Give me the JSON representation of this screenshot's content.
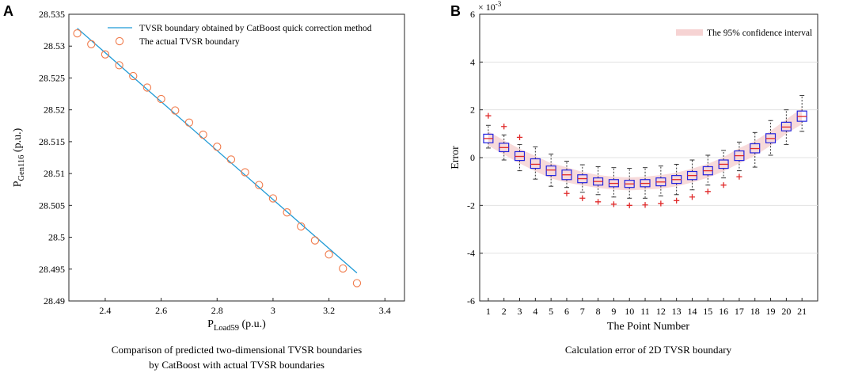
{
  "chart_data": [
    {
      "panel": "A",
      "type": "line+scatter",
      "title": "",
      "xlabel_main": "P",
      "xlabel_sub": "Load59",
      "xlabel_unit": " (p.u.)",
      "ylabel_main": "P",
      "ylabel_sub": "Gen116",
      "ylabel_unit": " (p.u.)",
      "xlim": [
        2.27,
        3.47
      ],
      "ylim": [
        28.49,
        28.535
      ],
      "xticks": [
        "2.4",
        "2.6",
        "2.8",
        "3",
        "3.2",
        "3.4"
      ],
      "xtick_values": [
        2.4,
        2.6,
        2.8,
        3.0,
        3.2,
        3.4
      ],
      "yticks": [
        "28.49",
        "28.495",
        "28.5",
        "28.505",
        "28.51",
        "28.515",
        "28.52",
        "28.525",
        "28.53",
        "28.535"
      ],
      "ytick_values": [
        28.49,
        28.495,
        28.5,
        28.505,
        28.51,
        28.515,
        28.52,
        28.525,
        28.53,
        28.535
      ],
      "legend": [
        "TVSR boundary obtained by CatBoost quick correction method",
        "The actual TVSR boundary"
      ],
      "legend_position": "top-right",
      "series": [
        {
          "name": "TVSR boundary obtained by CatBoost quick correction method",
          "kind": "line",
          "color": "#1f9ad6",
          "x": [
            2.3,
            3.3
          ],
          "y": [
            28.5328,
            28.4944
          ]
        },
        {
          "name": "The actual TVSR boundary",
          "kind": "scatter",
          "color": "#f07a4a",
          "x": [
            2.3,
            2.35,
            2.4,
            2.45,
            2.5,
            2.55,
            2.6,
            2.65,
            2.7,
            2.75,
            2.8,
            2.85,
            2.9,
            2.95,
            3.0,
            3.05,
            3.1,
            3.15,
            3.2,
            3.25,
            3.3
          ],
          "y": [
            28.532,
            28.5303,
            28.5287,
            28.527,
            28.5253,
            28.5235,
            28.5217,
            28.5199,
            28.518,
            28.5161,
            28.5142,
            28.5122,
            28.5102,
            28.5082,
            28.5061,
            28.5039,
            28.5017,
            28.4995,
            28.4973,
            28.4951,
            28.4928
          ]
        }
      ],
      "caption_lines": [
        "Comparison of predicted two-dimensional TVSR boundaries",
        "by CatBoost with actual TVSR boundaries"
      ]
    },
    {
      "panel": "B",
      "type": "box",
      "title": "",
      "xlabel": "The Point Number",
      "ylabel": "Error",
      "y_exponent_base": "× 10",
      "y_exponent_power": "-3",
      "ylim": [
        -6,
        6
      ],
      "yticks": [
        "-6",
        "-4",
        "-2",
        "0",
        "2",
        "4",
        "6"
      ],
      "ytick_values": [
        -6,
        -4,
        -2,
        0,
        2,
        4,
        6
      ],
      "categories": [
        "1",
        "2",
        "3",
        "4",
        "5",
        "6",
        "7",
        "8",
        "9",
        "10",
        "11",
        "12",
        "13",
        "14",
        "15",
        "16",
        "17",
        "18",
        "19",
        "20",
        "21"
      ],
      "legend": [
        "The 95% confidence interval"
      ],
      "legend_position": "top-right",
      "grid": true,
      "box_color": "#2323e0",
      "median_color": "#e02a2a",
      "outlier_color": "#e02a2a",
      "band_color": "#f6d3d3",
      "boxes": [
        {
          "whisker_low": 0.4,
          "q1": 0.62,
          "median": 0.8,
          "q3": 0.98,
          "whisker_high": 1.35,
          "outliers": [
            1.75
          ]
        },
        {
          "whisker_low": -0.1,
          "q1": 0.25,
          "median": 0.42,
          "q3": 0.6,
          "whisker_high": 0.95,
          "outliers": [
            1.3
          ]
        },
        {
          "whisker_low": -0.55,
          "q1": -0.12,
          "median": 0.05,
          "q3": 0.25,
          "whisker_high": 0.55,
          "outliers": [
            0.85
          ]
        },
        {
          "whisker_low": -0.9,
          "q1": -0.45,
          "median": -0.28,
          "q3": -0.05,
          "whisker_high": 0.45,
          "outliers": []
        },
        {
          "whisker_low": -1.2,
          "q1": -0.75,
          "median": -0.52,
          "q3": -0.35,
          "whisker_high": 0.15,
          "outliers": []
        },
        {
          "whisker_low": -1.25,
          "q1": -0.92,
          "median": -0.72,
          "q3": -0.52,
          "whisker_high": -0.15,
          "outliers": [
            -1.5
          ]
        },
        {
          "whisker_low": -1.45,
          "q1": -1.05,
          "median": -0.88,
          "q3": -0.72,
          "whisker_high": -0.3,
          "outliers": [
            -1.7
          ]
        },
        {
          "whisker_low": -1.55,
          "q1": -1.15,
          "median": -1.0,
          "q3": -0.85,
          "whisker_high": -0.38,
          "outliers": [
            -1.85
          ]
        },
        {
          "whisker_low": -1.65,
          "q1": -1.22,
          "median": -1.08,
          "q3": -0.92,
          "whisker_high": -0.42,
          "outliers": [
            -1.95
          ]
        },
        {
          "whisker_low": -1.7,
          "q1": -1.25,
          "median": -1.1,
          "q3": -0.95,
          "whisker_high": -0.45,
          "outliers": [
            -2.0
          ]
        },
        {
          "whisker_low": -1.7,
          "q1": -1.22,
          "median": -1.08,
          "q3": -0.92,
          "whisker_high": -0.42,
          "outliers": [
            -1.98
          ]
        },
        {
          "whisker_low": -1.6,
          "q1": -1.18,
          "median": -1.02,
          "q3": -0.85,
          "whisker_high": -0.35,
          "outliers": [
            -1.92
          ]
        },
        {
          "whisker_low": -1.55,
          "q1": -1.08,
          "median": -0.92,
          "q3": -0.75,
          "whisker_high": -0.28,
          "outliers": [
            -1.8
          ]
        },
        {
          "whisker_low": -1.35,
          "q1": -0.92,
          "median": -0.75,
          "q3": -0.58,
          "whisker_high": -0.1,
          "outliers": [
            -1.65
          ]
        },
        {
          "whisker_low": -1.15,
          "q1": -0.72,
          "median": -0.55,
          "q3": -0.38,
          "whisker_high": 0.1,
          "outliers": [
            -1.42
          ]
        },
        {
          "whisker_low": -0.85,
          "q1": -0.45,
          "median": -0.28,
          "q3": -0.1,
          "whisker_high": 0.3,
          "outliers": [
            -1.15
          ]
        },
        {
          "whisker_low": -0.55,
          "q1": -0.12,
          "median": 0.08,
          "q3": 0.28,
          "whisker_high": 0.65,
          "outliers": [
            -0.8
          ]
        },
        {
          "whisker_low": -0.4,
          "q1": 0.2,
          "median": 0.38,
          "q3": 0.58,
          "whisker_high": 1.05,
          "outliers": []
        },
        {
          "whisker_low": 0.1,
          "q1": 0.62,
          "median": 0.8,
          "q3": 1.0,
          "whisker_high": 1.55,
          "outliers": []
        },
        {
          "whisker_low": 0.55,
          "q1": 1.12,
          "median": 1.28,
          "q3": 1.48,
          "whisker_high": 2.0,
          "outliers": []
        },
        {
          "whisker_low": 1.1,
          "q1": 1.52,
          "median": 1.72,
          "q3": 1.95,
          "whisker_high": 2.6,
          "outliers": []
        }
      ],
      "caption_lines": [
        "Calculation error of 2D TVSR boundary"
      ]
    }
  ]
}
